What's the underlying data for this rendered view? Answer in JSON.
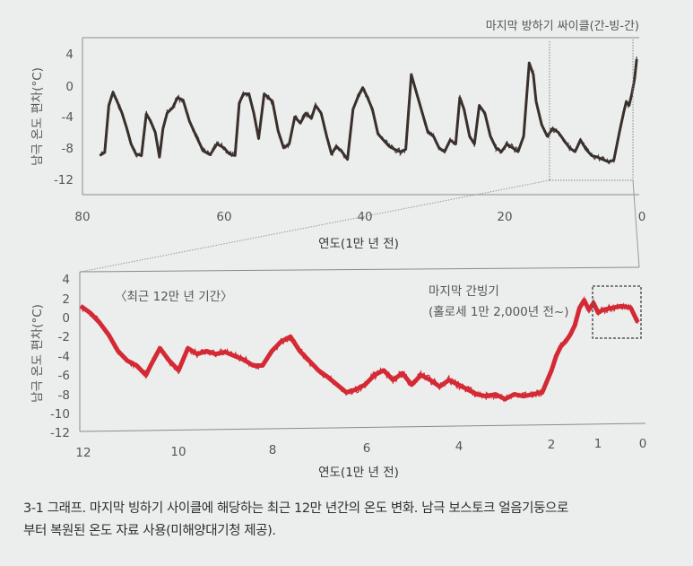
{
  "chart_data": [
    {
      "type": "line",
      "title": "마지막 방하기 싸이클(간-빙-간)",
      "xlabel": "연도(1만 년 전)",
      "ylabel": "남극 온도 편차(°C)",
      "xlim": [
        80,
        0
      ],
      "ylim": [
        -14,
        6
      ],
      "x_ticks": [
        "80",
        "60",
        "40",
        "20",
        "0"
      ],
      "y_ticks": [
        "4",
        "0",
        "-4",
        "-8",
        "-12"
      ],
      "grid": false,
      "line_color": "#3a302c",
      "series": [
        {
          "name": "남극 온도 편차",
          "x": [
            77.5,
            76.8,
            76.2,
            75.6,
            75.0,
            74.3,
            73.6,
            73.0,
            72.3,
            71.5,
            70.8,
            70.2,
            69.5,
            68.9,
            68.4,
            67.8,
            67.0,
            66.3,
            65.5,
            64.6,
            63.6,
            62.6,
            61.6,
            60.6,
            59.6,
            58.8,
            58.0,
            57.4,
            56.8,
            56.0,
            55.3,
            54.6,
            53.8,
            53.2,
            52.6,
            51.8,
            51.0,
            50.2,
            49.4,
            48.6,
            47.8,
            47.0,
            46.4,
            45.6,
            44.8,
            44.1,
            43.4,
            42.6,
            41.8,
            41.0,
            40.2,
            39.6,
            38.9,
            38.2,
            37.4,
            36.6,
            35.8,
            35.0,
            34.2,
            33.4,
            32.6,
            31.8,
            31.0,
            30.2,
            29.4,
            28.6,
            27.8,
            27.0,
            26.2,
            25.6,
            25.0,
            24.2,
            23.5,
            22.8,
            22.0,
            21.2,
            20.4,
            19.6,
            18.8,
            18.0,
            17.2,
            16.4,
            15.6,
            15.0,
            14.6,
            13.8,
            13.0,
            12.2,
            11.4,
            10.6,
            9.8,
            9.0,
            8.2,
            7.4,
            6.6,
            5.8,
            5.0,
            4.2,
            3.4,
            2.6,
            2.0,
            1.6,
            1.2,
            0.8,
            0.4,
            0.1
          ],
          "values": [
            -9.0,
            -8.6,
            -2.5,
            -0.8,
            -2.0,
            -3.5,
            -5.5,
            -7.5,
            -8.8,
            -9.0,
            -3.6,
            -4.5,
            -6.0,
            -9.2,
            -5.5,
            -3.5,
            -2.8,
            -1.5,
            -1.8,
            -4.5,
            -6.5,
            -8.4,
            -8.9,
            -7.5,
            -8.0,
            -8.8,
            -9.0,
            -2.2,
            -1.0,
            -1.0,
            -3.5,
            -6.8,
            -1.0,
            -1.5,
            -2.0,
            -5.8,
            -8.0,
            -7.5,
            -4.0,
            -4.8,
            -3.5,
            -4.2,
            -2.5,
            -3.5,
            -6.5,
            -8.8,
            -7.8,
            -8.5,
            -9.5,
            -3.0,
            -1.2,
            -0.2,
            -1.5,
            -3.0,
            -6.2,
            -7.0,
            -7.8,
            -8.2,
            -8.5,
            -8.2,
            1.5,
            -1.0,
            -3.5,
            -6.0,
            -6.5,
            -8.0,
            -8.5,
            -7.0,
            -7.5,
            -1.5,
            -3.0,
            -6.5,
            -7.5,
            -2.5,
            -3.5,
            -6.5,
            -8.0,
            -8.5,
            -7.5,
            -8.0,
            -8.5,
            -6.5,
            3.0,
            1.5,
            -2.0,
            -5.0,
            -6.5,
            -5.5,
            -6.0,
            -7.0,
            -8.0,
            -8.5,
            -7.0,
            -8.2,
            -9.0,
            -9.2,
            -9.5,
            -9.8,
            -9.6,
            -6.0,
            -3.5,
            -2.0,
            -2.5,
            -1.0,
            1.0,
            3.5
          ]
        }
      ],
      "annotations": [
        "마지막 방하기 싸이클(간-빙-간)"
      ],
      "highlight_region": {
        "x_range": [
          12,
          0
        ],
        "style": "dotted",
        "meaning": "zoomed into lower chart"
      }
    },
    {
      "type": "line",
      "title": "〈최근 12만 년 기간〉",
      "xlabel": "연도(1만 년 전)",
      "ylabel": "남극 온도 편차(°C)",
      "xlim": [
        12,
        0
      ],
      "ylim": [
        -12,
        4
      ],
      "x_ticks": [
        "12",
        "10",
        "8",
        "6",
        "4",
        "2",
        "1",
        "0"
      ],
      "y_ticks": [
        "4",
        "2",
        "0",
        "-2",
        "-4",
        "-6",
        "-8",
        "-10",
        "-12"
      ],
      "grid": false,
      "line_color": "#d42a35",
      "series": [
        {
          "name": "남극 온도 편차",
          "x": [
            12.0,
            11.8,
            11.6,
            11.4,
            11.2,
            11.0,
            10.8,
            10.6,
            10.5,
            10.3,
            10.1,
            9.9,
            9.7,
            9.5,
            9.3,
            9.1,
            8.9,
            8.7,
            8.5,
            8.3,
            8.1,
            7.9,
            7.7,
            7.5,
            7.3,
            7.1,
            6.9,
            6.7,
            6.5,
            6.3,
            6.1,
            5.9,
            5.7,
            5.5,
            5.3,
            5.1,
            4.9,
            4.7,
            4.5,
            4.3,
            4.1,
            3.9,
            3.7,
            3.5,
            3.3,
            3.1,
            2.9,
            2.7,
            2.5,
            2.3,
            2.1,
            1.9,
            1.8,
            1.7,
            1.6,
            1.5,
            1.4,
            1.3,
            1.2,
            1.1,
            1.0,
            0.9,
            0.8,
            0.6,
            0.4,
            0.2,
            0.05
          ],
          "values": [
            1.2,
            0.5,
            -0.5,
            -1.8,
            -3.5,
            -4.5,
            -5.0,
            -6.0,
            -5.0,
            -3.2,
            -4.5,
            -5.5,
            -3.2,
            -3.8,
            -3.5,
            -3.8,
            -3.6,
            -4.0,
            -4.4,
            -5.0,
            -5.0,
            -3.5,
            -2.5,
            -2.0,
            -3.5,
            -4.5,
            -5.5,
            -6.2,
            -7.0,
            -7.8,
            -7.5,
            -7.0,
            -6.0,
            -5.5,
            -6.5,
            -5.8,
            -7.0,
            -6.0,
            -6.5,
            -7.2,
            -6.5,
            -7.0,
            -7.5,
            -8.0,
            -8.2,
            -8.0,
            -8.5,
            -8.0,
            -8.2,
            -8.0,
            -7.8,
            -5.5,
            -4.0,
            -3.0,
            -2.5,
            -1.8,
            -0.8,
            1.0,
            1.8,
            0.8,
            1.5,
            0.5,
            0.8,
            1.0,
            1.2,
            1.0,
            -0.5
          ]
        }
      ],
      "annotations": [
        {
          "text": "〈최근 12만 년 기간〉",
          "position": "top-left"
        },
        {
          "text": "마지막 간빙기",
          "position": "top-right"
        },
        {
          "text": "(홀로세 1만 2,000년 전~)",
          "position": "top-right"
        }
      ],
      "highlight_region": {
        "x_range": [
          1.1,
          0.05
        ],
        "y_range": [
          -1.5,
          3.2
        ],
        "style": "dotted box"
      }
    }
  ],
  "caption": {
    "line1": "3-1 그래프. 마지막 빙하기 사이클에 해당하는 최근 12만 년간의 온도 변화. 남극 보스토크 얼음기둥으로",
    "line2": "부터 복원된 온도 자료 사용(미해양대기청 제공)."
  }
}
